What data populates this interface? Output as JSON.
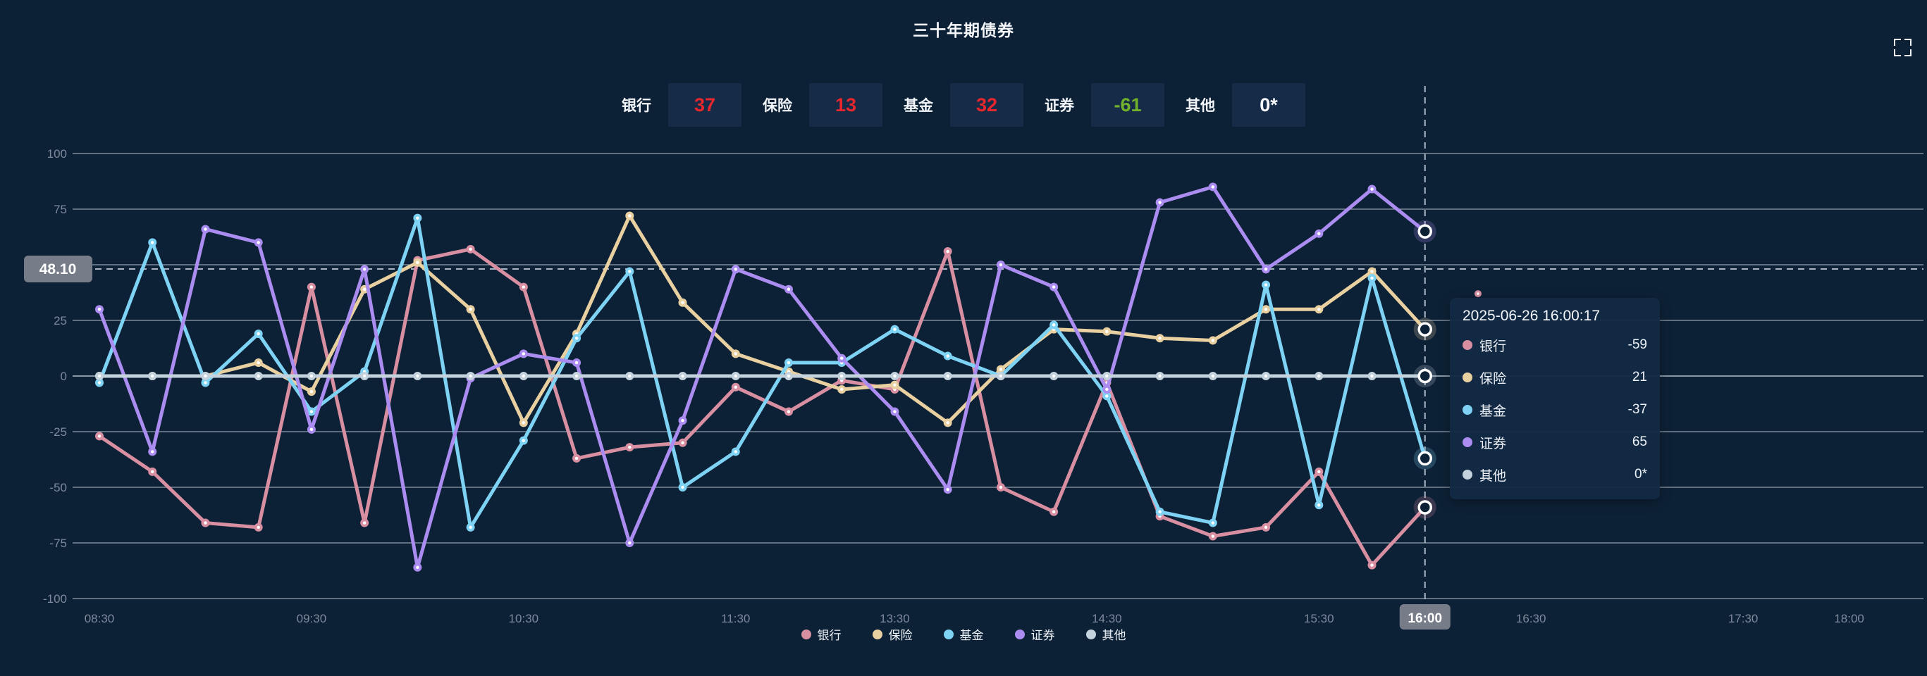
{
  "header": {
    "title": "三十年期债券"
  },
  "icons": {
    "fullscreen": "fullscreen-icon"
  },
  "colors": {
    "background": "#0d2136",
    "grid": "rgba(223,231,242,0.8)",
    "axis_text": "#7e8a9c",
    "badge_bg": "#767d89",
    "stat_red": "#e8262d",
    "stat_green": "#72b12c",
    "stat_white": "#f5f7fa"
  },
  "stats": {
    "items": [
      {
        "label": "银行",
        "value": "37",
        "color": "#e8262d"
      },
      {
        "label": "保险",
        "value": "13",
        "color": "#e8262d"
      },
      {
        "label": "基金",
        "value": "32",
        "color": "#e8262d"
      },
      {
        "label": "证券",
        "value": "-61",
        "color": "#72b12c"
      },
      {
        "label": "其他",
        "value": "0*",
        "color": "#f5f7fa"
      }
    ]
  },
  "chart_data": {
    "type": "line",
    "title": "三十年期债券",
    "xlabel": "",
    "ylabel": "",
    "ylim": [
      -100,
      100
    ],
    "y_ticks": [
      100,
      75,
      50,
      25,
      0,
      -25,
      -50,
      -75,
      -100
    ],
    "grid": "horizontal",
    "legend_position": "bottom",
    "categories": [
      "08:30",
      "08:45",
      "09:00",
      "09:15",
      "09:30",
      "09:45",
      "10:00",
      "10:15",
      "10:30",
      "10:45",
      "11:00",
      "11:15",
      "11:30",
      "11:45",
      "12:00",
      "13:30",
      "13:45",
      "14:00",
      "14:15",
      "14:30",
      "14:45",
      "15:00",
      "15:15",
      "15:30",
      "15:45",
      "16:00",
      "16:15",
      "16:30",
      "16:45",
      "17:00",
      "17:15",
      "17:30",
      "17:45",
      "18:00"
    ],
    "x_tick_indices": [
      0,
      4,
      8,
      12,
      15,
      19,
      23,
      25,
      27,
      31,
      33
    ],
    "highlighted_x_tick": "16:00",
    "crosshair_index": 25,
    "axis_marker": {
      "label": "48.10",
      "value": 48.1
    },
    "series": [
      {
        "name": "银行",
        "color": "#d98fa2",
        "values": [
          -27,
          -43,
          -66,
          -68,
          40,
          -66,
          52,
          57,
          40,
          -37,
          -32,
          -30,
          -5,
          -16,
          -2,
          -6,
          56,
          -50,
          -61,
          -3,
          -63,
          -72,
          -68,
          -43,
          -85,
          -59,
          null,
          null,
          null,
          null,
          null,
          null,
          null,
          null
        ]
      },
      {
        "name": "保险",
        "color": "#e9d0a1",
        "values": [
          0,
          0,
          0,
          6,
          -7,
          39,
          51,
          30,
          -21,
          19,
          72,
          33,
          10,
          2,
          -6,
          -4,
          -21,
          3,
          21,
          20,
          17,
          16,
          30,
          30,
          47,
          21,
          null,
          null,
          null,
          null,
          null,
          null,
          null,
          null
        ]
      },
      {
        "name": "基金",
        "color": "#7ed3f5",
        "values": [
          -3,
          60,
          -3,
          19,
          -16,
          2,
          71,
          -68,
          -29,
          17,
          47,
          -50,
          -34,
          6,
          6,
          21,
          9,
          0,
          23,
          -9,
          -61,
          -66,
          41,
          -58,
          44,
          -37,
          null,
          null,
          null,
          null,
          null,
          null,
          null,
          null
        ]
      },
      {
        "name": "证券",
        "color": "#ab8cf0",
        "values": [
          30,
          -34,
          66,
          60,
          -24,
          48,
          -86,
          -1,
          10,
          6,
          -75,
          -20,
          48,
          39,
          8,
          -16,
          -51,
          50,
          40,
          -6,
          78,
          85,
          48,
          64,
          84,
          65,
          null,
          null,
          null,
          null,
          null,
          null,
          null,
          null
        ]
      },
      {
        "name": "其他",
        "color": "#c3d2dc",
        "values": [
          0,
          0,
          0,
          0,
          0,
          0,
          0,
          0,
          0,
          0,
          0,
          0,
          0,
          0,
          0,
          0,
          0,
          0,
          0,
          0,
          0,
          0,
          0,
          0,
          0,
          0,
          null,
          null,
          null,
          null,
          null,
          null,
          null,
          null
        ]
      }
    ],
    "extra_point": {
      "series": "银行",
      "category_index": 26,
      "value": 37
    }
  },
  "tooltip": {
    "title": "2025-06-26 16:00:17",
    "rows": [
      {
        "label": "银行",
        "value": "-59",
        "color": "#d98fa2"
      },
      {
        "label": "保险",
        "value": "21",
        "color": "#e9d0a1"
      },
      {
        "label": "基金",
        "value": "-37",
        "color": "#7ed3f5"
      },
      {
        "label": "证券",
        "value": "65",
        "color": "#ab8cf0"
      },
      {
        "label": "其他",
        "value": "0*",
        "color": "#c3d2dc"
      }
    ]
  },
  "legend": {
    "items": [
      {
        "label": "银行",
        "color": "#d98fa2"
      },
      {
        "label": "保险",
        "color": "#e9d0a1"
      },
      {
        "label": "基金",
        "color": "#7ed3f5"
      },
      {
        "label": "证券",
        "color": "#ab8cf0"
      },
      {
        "label": "其他",
        "color": "#c3d2dc"
      }
    ]
  }
}
